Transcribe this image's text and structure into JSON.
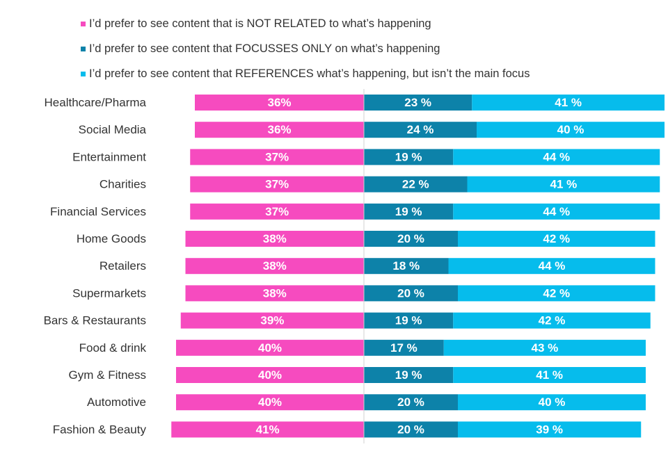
{
  "chart_data": {
    "type": "bar",
    "orientation": "horizontal",
    "stacking": "diverging",
    "value_suffix": "%",
    "categories": [
      "Healthcare/Pharma",
      "Social Media",
      "Entertainment",
      "Charities",
      "Financial Services",
      "Home Goods",
      "Retailers",
      "Supermarkets",
      "Bars & Restaurants",
      "Food & drink",
      "Gym & Fitness",
      "Automotive",
      "Fashion & Beauty"
    ],
    "series": [
      {
        "name": "I’d prefer to see content that is NOT RELATED to what’s happening",
        "color": "#f64bbf",
        "side": "left",
        "values": [
          36,
          36,
          37,
          37,
          37,
          38,
          38,
          38,
          39,
          40,
          40,
          40,
          41
        ],
        "labels": [
          "36%",
          "36%",
          "37%",
          "37%",
          "37%",
          "38%",
          "38%",
          "38%",
          "39%",
          "40%",
          "40%",
          "40%",
          "41%"
        ]
      },
      {
        "name": "I’d prefer to see content that FOCUSSES ONLY on what’s happening",
        "color": "#0d82a9",
        "side": "right",
        "values": [
          23,
          24,
          19,
          22,
          19,
          20,
          18,
          20,
          19,
          17,
          19,
          20,
          20
        ],
        "labels": [
          "23 %",
          "24 %",
          "19 %",
          "22 %",
          "19 %",
          "20 %",
          "18 %",
          "20 %",
          "19 %",
          "17 %",
          "19 %",
          "20 %",
          "20 %"
        ]
      },
      {
        "name": "I’d prefer to see content that REFERENCES what’s happening, but isn’t the main focus",
        "color": "#06bcec",
        "side": "right",
        "values": [
          41,
          40,
          44,
          41,
          44,
          42,
          44,
          42,
          42,
          43,
          41,
          40,
          39
        ],
        "labels": [
          "41 %",
          "40 %",
          "44 %",
          "41 %",
          "44 %",
          "42 %",
          "44 %",
          "42 %",
          "42 %",
          "43 %",
          "41 %",
          "40 %",
          "39 %"
        ]
      }
    ],
    "grid": false,
    "legend_position": "top"
  }
}
